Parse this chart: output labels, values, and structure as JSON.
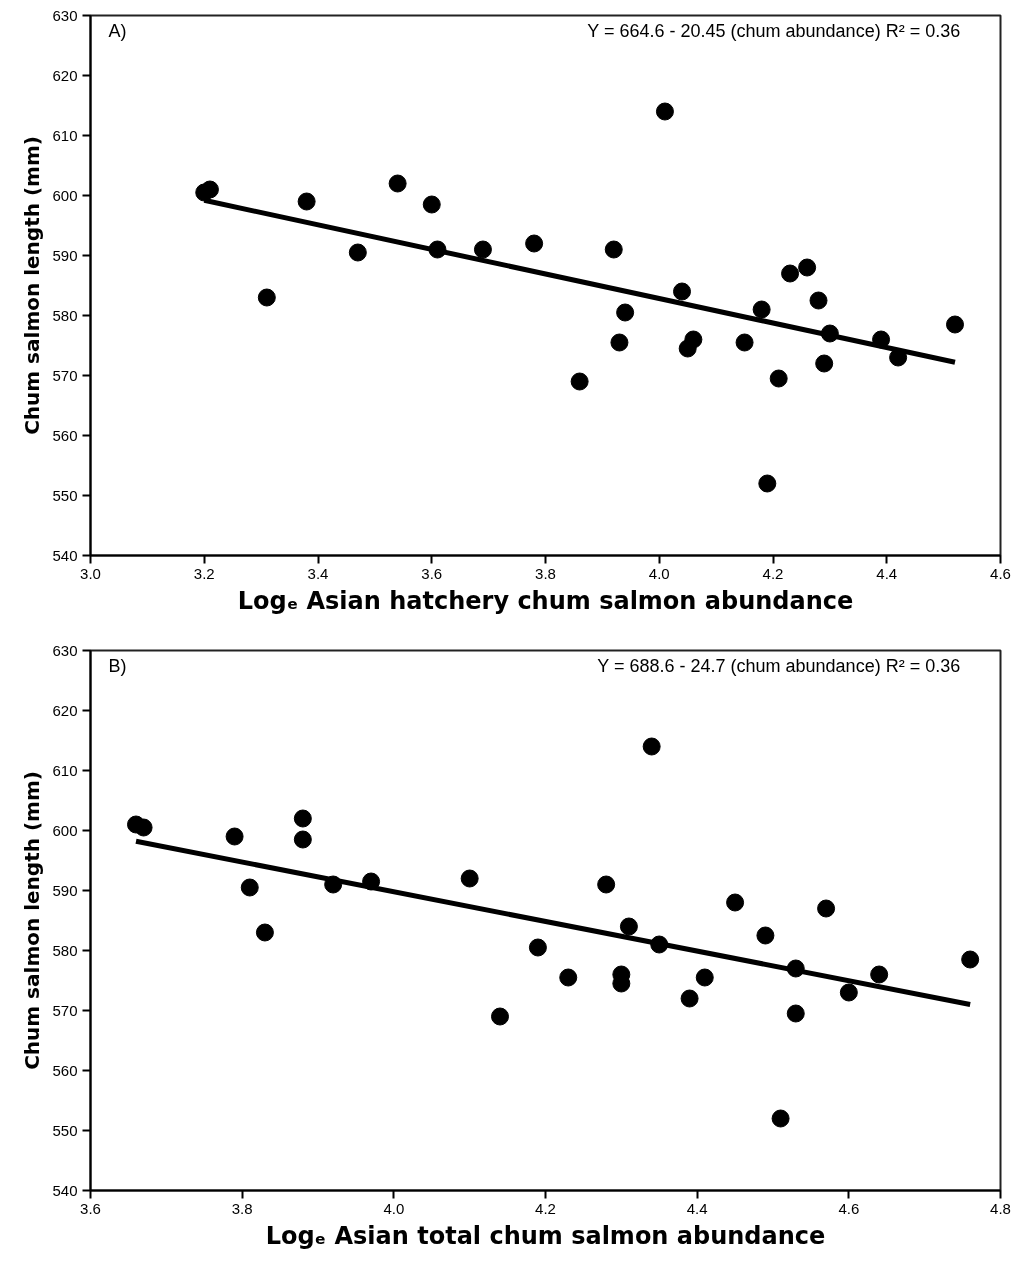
{
  "chart_data": [
    {
      "type": "scatter",
      "xlabel": "Logₑ Asian hatchery chum salmon abundance",
      "ylabel": "Chum salmon length (mm)",
      "annotations": [
        "A)",
        "Y = 664.6 - 20.45 (chum abundance)   R² = 0.36"
      ],
      "xlim": [
        3.0,
        4.6
      ],
      "xticks": [
        {
          "value": 3.0,
          "label": "3.0"
        },
        {
          "value": 3.2,
          "label": "3.2"
        },
        {
          "value": 3.4,
          "label": "3.4"
        },
        {
          "value": 3.6,
          "label": "3.6"
        },
        {
          "value": 3.8,
          "label": "3.8"
        },
        {
          "value": 4.0,
          "label": "4.0"
        },
        {
          "value": 4.2,
          "label": "4.2"
        },
        {
          "value": 4.4,
          "label": "4.4"
        },
        {
          "value": 4.6,
          "label": "4.6"
        }
      ],
      "ylim": [
        540,
        630
      ],
      "yticks": [
        540,
        550,
        560,
        570,
        580,
        590,
        600,
        610,
        620,
        630
      ],
      "grid": false,
      "series": [
        {
          "marker": "circle",
          "color": "#000000",
          "x": [
            3.2,
            3.21,
            3.31,
            3.38,
            3.47,
            3.54,
            3.6,
            3.61,
            3.69,
            3.78,
            3.86,
            3.92,
            3.93,
            3.94,
            4.01,
            4.04,
            4.05,
            4.06,
            4.15,
            4.18,
            4.19,
            4.21,
            4.23,
            4.26,
            4.28,
            4.29,
            4.3,
            4.39,
            4.42,
            4.52
          ],
          "values": [
            600.5,
            601,
            583,
            599,
            590.5,
            602,
            598.5,
            591,
            591,
            592,
            569,
            591,
            575.5,
            580.5,
            614,
            584,
            574.5,
            576,
            575.5,
            581,
            552,
            569.5,
            587,
            588,
            582.5,
            572,
            577,
            576,
            573,
            578.5
          ]
        },
        {
          "type": "line",
          "color": "#000000",
          "line_style": "solid",
          "x": [
            3.2,
            4.52
          ],
          "values": [
            599.2,
            572.2
          ]
        }
      ]
    },
    {
      "type": "scatter",
      "xlabel": "Logₑ Asian total chum salmon abundance",
      "ylabel": "Chum salmon length (mm)",
      "annotations": [
        "B)",
        "Y = 688.6 - 24.7 (chum abundance)   R² = 0.36"
      ],
      "xlim": [
        3.6,
        4.8
      ],
      "xticks": [
        {
          "value": 3.6,
          "label": "3.6"
        },
        {
          "value": 3.8,
          "label": "3.8"
        },
        {
          "value": 4.0,
          "label": "4.0"
        },
        {
          "value": 4.2,
          "label": "4.2"
        },
        {
          "value": 4.4,
          "label": "4.4"
        },
        {
          "value": 4.6,
          "label": "4.6"
        },
        {
          "value": 4.8,
          "label": "4.8"
        }
      ],
      "ylim": [
        540,
        630
      ],
      "yticks": [
        540,
        550,
        560,
        570,
        580,
        590,
        600,
        610,
        620,
        630
      ],
      "grid": false,
      "series": [
        {
          "marker": "circle",
          "color": "#000000",
          "x": [
            3.66,
            3.67,
            3.79,
            3.81,
            3.83,
            3.88,
            3.88,
            3.92,
            3.97,
            4.1,
            4.14,
            4.19,
            4.23,
            4.28,
            4.3,
            4.3,
            4.31,
            4.34,
            4.35,
            4.39,
            4.41,
            4.45,
            4.49,
            4.51,
            4.53,
            4.53,
            4.57,
            4.6,
            4.64,
            4.76
          ],
          "values": [
            601,
            600.5,
            599,
            590.5,
            583,
            602,
            598.5,
            591,
            591.5,
            592,
            569,
            580.5,
            575.5,
            591,
            576,
            574.5,
            584,
            614,
            581,
            572,
            575.5,
            588,
            582.5,
            552,
            577,
            569.5,
            587,
            573,
            576,
            578.5
          ]
        },
        {
          "type": "line",
          "color": "#000000",
          "line_style": "solid",
          "x": [
            3.66,
            4.76
          ],
          "values": [
            598.2,
            571.0
          ]
        }
      ]
    }
  ]
}
